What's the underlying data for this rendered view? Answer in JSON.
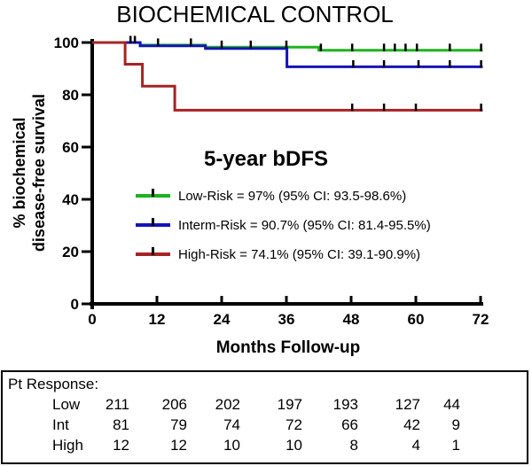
{
  "title": "BIOCHEMICAL CONTROL",
  "chart_data": {
    "type": "line",
    "subtype": "kaplan-meier-step-survival",
    "title": "BIOCHEMICAL CONTROL",
    "xlabel": "Months Follow-up",
    "ylabel_line1": "% biochemical",
    "ylabel_line2": "disease-free survival",
    "xlim": [
      0,
      74
    ],
    "ylim": [
      0,
      100
    ],
    "x_ticks": [
      "0",
      "12",
      "24",
      "36",
      "48",
      "60",
      "72"
    ],
    "y_ticks": [
      "100",
      "80",
      "60",
      "40",
      "20",
      "0"
    ],
    "grid": false,
    "legend_position": "center",
    "series": [
      {
        "name": "Low-Risk",
        "color": "#1db31d",
        "end_month": 72.4,
        "steps": [
          [
            0,
            100
          ],
          [
            8.9,
            99
          ],
          [
            21,
            98.2
          ],
          [
            42,
            97
          ]
        ],
        "censor_months": [
          7.1,
          7.9,
          12.2,
          18.3,
          24,
          29.4,
          36,
          42.4,
          48.2,
          54.1,
          56.1,
          58.1,
          60.2,
          66.3,
          72.1
        ],
        "five_year_bdfs": "97%",
        "ci_95": "93.5-98.6%"
      },
      {
        "name": "Interm-Risk",
        "color": "#1414b8",
        "end_month": 72.4,
        "steps": [
          [
            0,
            100
          ],
          [
            8.9,
            98.7
          ],
          [
            21,
            97.7
          ],
          [
            36.1,
            90.7
          ]
        ],
        "censor_months": [
          48.4,
          54.1,
          60.5,
          66.3,
          72.1
        ],
        "five_year_bdfs": "90.7%",
        "ci_95": "81.4-95.5%"
      },
      {
        "name": "High-Risk",
        "color": "#a62323",
        "end_month": 72.4,
        "steps": [
          [
            0,
            100
          ],
          [
            6.1,
            91.7
          ],
          [
            9.3,
            83.3
          ],
          [
            15.3,
            74.1
          ]
        ],
        "censor_months": [
          48.2,
          54.1,
          60,
          72.1
        ],
        "five_year_bdfs": "74.1%",
        "ci_95": "39.1-90.9%"
      }
    ]
  },
  "legend": {
    "title": "5-year bDFS",
    "items": [
      {
        "label": "Low-Risk = 97% (95% CI: 93.5-98.6%)",
        "color": "#1db31d"
      },
      {
        "label": "Interm-Risk = 90.7% (95% CI: 81.4-95.5%)",
        "color": "#1414b8"
      },
      {
        "label": "High-Risk = 74.1% (95% CI: 39.1-90.9%)",
        "color": "#a62323"
      }
    ]
  },
  "pt_table": {
    "header": "Pt Response:",
    "rows": [
      {
        "label": "Low",
        "values": [
          "211",
          "206",
          "202",
          "197",
          "193",
          "127",
          "44"
        ]
      },
      {
        "label": "Int",
        "values": [
          "81",
          "79",
          "74",
          "72",
          "66",
          "42",
          "9"
        ]
      },
      {
        "label": "High",
        "values": [
          "12",
          "12",
          "10",
          "10",
          "8",
          "4",
          "1"
        ]
      }
    ]
  }
}
